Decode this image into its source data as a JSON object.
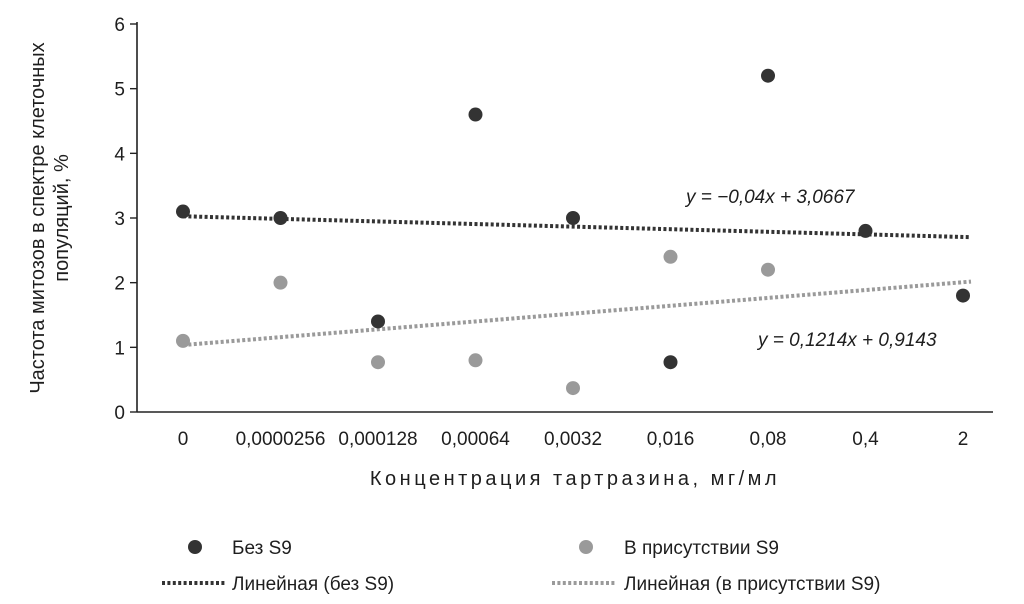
{
  "chart_data": {
    "type": "scatter",
    "categories": [
      "0",
      "0,0000256",
      "0,000128",
      "0,00064",
      "0,0032",
      "0,016",
      "0,08",
      "0,4",
      "2"
    ],
    "xlabel": "Концентрация тартразина, мг/мл",
    "ylabel": [
      "Частота митозов в спектре клеточных",
      "популяций, %"
    ],
    "yticks": [
      "0",
      "1",
      "2",
      "3",
      "4",
      "5",
      "6"
    ],
    "ylim": [
      0,
      6
    ],
    "grid": false,
    "legend_position": "bottom",
    "series": [
      {
        "name": "Без S9",
        "color": "#333333",
        "values": [
          3.1,
          3.0,
          1.4,
          4.6,
          3.0,
          0.77,
          5.2,
          2.8,
          1.8
        ]
      },
      {
        "name": "В присутствии S9",
        "color": "#9a9a9a",
        "values": [
          1.1,
          2.0,
          0.77,
          0.8,
          0.37,
          2.4,
          2.2,
          null,
          null
        ]
      }
    ],
    "trendlines": [
      {
        "name": "Линейная (без S9)",
        "color": "#333333",
        "slope": -0.04,
        "intercept": 3.0667,
        "equation": "y = −0,04x + 3,0667"
      },
      {
        "name": "Линейная (в присутствии S9)",
        "color": "#9a9a9a",
        "slope": 0.1214,
        "intercept": 0.9143,
        "equation": "y = 0,1214x + 0,9143"
      }
    ]
  }
}
